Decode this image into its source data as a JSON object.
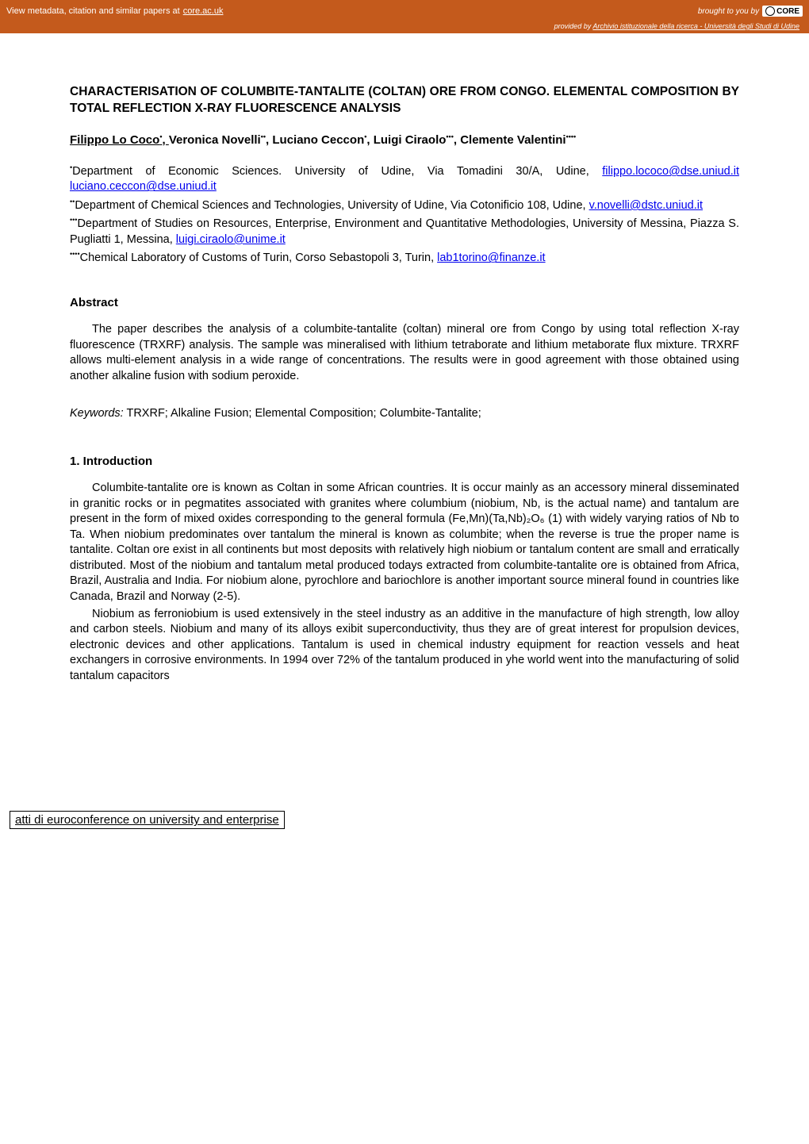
{
  "topbar": {
    "left_text": "View metadata, citation and similar papers at ",
    "link_text": "core.ac.uk",
    "right_prefix": "brought to you by",
    "core_label": "CORE"
  },
  "subbar": {
    "prefix": "provided by ",
    "link_text": "Archivio istituzionale della ricerca - Università degli Studi di Udine"
  },
  "title": "CHARACTERISATION OF COLUMBITE-TANTALITE (COLTAN) ORE FROM CONGO. ELEMENTAL COMPOSITION BY TOTAL REFLECTION X-RAY FLUORESCENCE ANALYSIS",
  "authors": {
    "a1_name": "Filippo Lo Coco",
    "a1_sup": "•",
    "a1_comma": ", ",
    "a2_name": "Veronica Novelli",
    "a2_sup": "••",
    "a2_comma": ", ",
    "a3_name": "Luciano Ceccon",
    "a3_sup": "•",
    "a3_comma": ", ",
    "a4_name": "Luigi Ciraolo",
    "a4_sup": "•••",
    "a4_comma": ", ",
    "a5_name": "Clemente Valentini",
    "a5_sup": "••••"
  },
  "affiliations": {
    "p1_sup": "•",
    "p1_text": "Department of Economic Sciences. University of Udine, Via Tomadini 30/A, Udine, ",
    "p1_email1": "filippo.lococo@dse.uniud.it",
    "p1_space": " ",
    "p1_email2": "luciano.ceccon@dse.uniud.it",
    "p2_sup": "••",
    "p2_text": "Department of Chemical Sciences and Technologies, University of Udine, Via Cotonificio 108, Udine, ",
    "p2_email": "v.novelli@dstc.uniud.it",
    "p3_sup": "•••",
    "p3_text": "Department of Studies on Resources, Enterprise, Environment and Quantitative Methodologies, University of Messina, Piazza S. Pugliatti 1, Messina, ",
    "p3_email": "luigi.ciraolo@unime.it",
    "p4_sup": "••••",
    "p4_text": "Chemical Laboratory of Customs of Turin, Corso Sebastopoli 3, Turin, ",
    "p4_email": "lab1torino@finanze.it"
  },
  "abstract": {
    "heading": "Abstract",
    "text": "The paper describes the analysis of a columbite-tantalite (coltan) mineral ore from Congo by using total reflection X-ray fluorescence (TRXRF) analysis. The sample was mineralised with lithium tetraborate and lithium metaborate flux mixture. TRXRF allows multi-element analysis in a wide range of concentrations. The results were in good agreement with those obtained using another alkaline fusion with sodium peroxide."
  },
  "keywords": {
    "label": "Keywords:",
    "text": " TRXRF; Alkaline Fusion; Elemental Composition; Columbite-Tantalite;"
  },
  "intro": {
    "heading": "1. Introduction",
    "p1": "Columbite-tantalite ore is known as Coltan in some African countries. It is occur mainly as an accessory mineral disseminated in granitic rocks or in pegmatites associated with granites where columbium (niobium, Nb, is the actual name) and tantalum are present in the form of mixed oxides corresponding to the general formula (Fe,Mn)(Ta,Nb)₂O₆ (1) with widely varying ratios of Nb to Ta. When niobium predominates over tantalum the mineral is known as columbite; when the reverse is true the proper name is tantalite. Coltan ore exist in all continents but most deposits with relatively high niobium or tantalum content are small and erratically distributed. Most of the niobium and tantalum metal produced todays extracted from columbite-tantalite ore is obtained from Africa, Brazil, Australia and India. For niobium alone, pyrochlore and bariochlore is another important source mineral found in countries like Canada, Brazil and Norway (2-5).",
    "p2": "Niobium as ferroniobium is used extensively in the steel industry as an additive in the manufacture of high strength, low alloy and carbon steels. Niobium and many of its alloys exibit superconductivity, thus they are of great interest for propulsion devices, electronic devices and other applications. Tantalum is used in chemical industry equipment for reaction vessels and heat exchangers in corrosive environments. In 1994 over 72% of the tantalum produced in yhe world went into the manufacturing of solid tantalum capacitors"
  },
  "footer": {
    "text": "atti di euroconference on university and enterprise"
  },
  "colors": {
    "header_bg": "#c45a1c",
    "link_blue": "#0000ee",
    "text": "#000000",
    "bg": "#ffffff"
  }
}
